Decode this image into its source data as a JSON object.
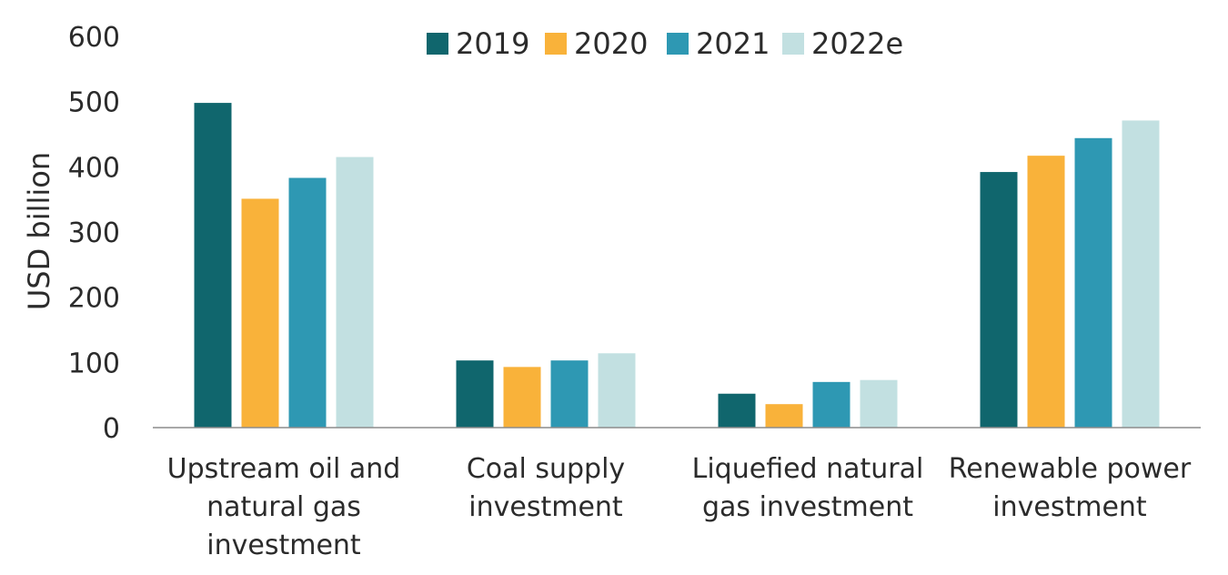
{
  "chart_data": {
    "type": "bar",
    "categories": [
      [
        "Upstream oil and",
        "natural gas",
        "investment"
      ],
      [
        "Coal supply",
        "investment"
      ],
      [
        "Liquefied natural",
        "gas investment"
      ],
      [
        "Renewable power",
        "investment"
      ]
    ],
    "series": [
      {
        "name": "2019",
        "color": "#10666d",
        "values": [
          498,
          103,
          52,
          392
        ]
      },
      {
        "name": "2020",
        "color": "#f9b23a",
        "values": [
          351,
          93,
          36,
          417
        ]
      },
      {
        "name": "2021",
        "color": "#2e98b3",
        "values": [
          383,
          103,
          70,
          444
        ]
      },
      {
        "name": "2022e",
        "color": "#c2e0e1",
        "values": [
          415,
          114,
          73,
          471
        ]
      }
    ],
    "ylabel": "USD billion",
    "xlabel": "",
    "title": "",
    "ylim": [
      0,
      600
    ],
    "yticks": [
      0,
      100,
      200,
      300,
      400,
      500,
      600
    ],
    "grid": false,
    "legend_position": "top-center"
  }
}
